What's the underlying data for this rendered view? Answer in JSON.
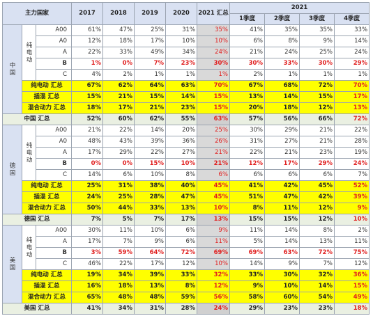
{
  "header": {
    "country_col": "主力国家",
    "years": [
      "2017",
      "2018",
      "2019",
      "2020"
    ],
    "y2021_total": "2021 汇总",
    "y2021_group": "2021",
    "quarters": [
      "1季度",
      "2季度",
      "3季度",
      "4季度"
    ]
  },
  "countries": [
    {
      "name": "中国",
      "pure_label": "纯电动",
      "segments": [
        {
          "label": "A00",
          "values": [
            "61%",
            "47%",
            "25%",
            "31%",
            "35%",
            "41%",
            "35%",
            "35%",
            "33%"
          ]
        },
        {
          "label": "A0",
          "values": [
            "12%",
            "18%",
            "17%",
            "10%",
            "10%",
            "6%",
            "8%",
            "9%",
            "14%"
          ]
        },
        {
          "label": "A",
          "values": [
            "22%",
            "33%",
            "49%",
            "34%",
            "24%",
            "21%",
            "24%",
            "25%",
            "24%"
          ]
        },
        {
          "label": "B",
          "values": [
            "1%",
            "0%",
            "7%",
            "23%",
            "30%",
            "30%",
            "33%",
            "30%",
            "29%"
          ]
        },
        {
          "label": "C",
          "values": [
            "4%",
            "2%",
            "1%",
            "1%",
            "1%",
            "2%",
            "1%",
            "1%",
            "1%"
          ]
        }
      ],
      "subtotals": [
        {
          "label": "纯电动 汇总",
          "values": [
            "67%",
            "62%",
            "64%",
            "63%",
            "70%",
            "67%",
            "68%",
            "72%",
            "70%"
          ]
        },
        {
          "label": "插混 汇总",
          "values": [
            "15%",
            "21%",
            "15%",
            "14%",
            "15%",
            "13%",
            "14%",
            "15%",
            "17%"
          ]
        },
        {
          "label": "混合动力 汇总",
          "values": [
            "18%",
            "17%",
            "21%",
            "23%",
            "15%",
            "20%",
            "18%",
            "12%",
            "13%"
          ]
        }
      ],
      "total": {
        "label": "中国 汇总",
        "values": [
          "52%",
          "60%",
          "62%",
          "55%",
          "63%",
          "57%",
          "56%",
          "66%",
          "72%"
        ]
      }
    },
    {
      "name": "德国",
      "pure_label": "纯电动",
      "segments": [
        {
          "label": "A00",
          "values": [
            "21%",
            "22%",
            "14%",
            "20%",
            "25%",
            "30%",
            "29%",
            "21%",
            "22%"
          ]
        },
        {
          "label": "A0",
          "values": [
            "48%",
            "43%",
            "39%",
            "36%",
            "26%",
            "31%",
            "27%",
            "21%",
            "28%"
          ]
        },
        {
          "label": "A",
          "values": [
            "17%",
            "29%",
            "22%",
            "27%",
            "21%",
            "22%",
            "21%",
            "23%",
            "19%"
          ]
        },
        {
          "label": "B",
          "values": [
            "0%",
            "0%",
            "15%",
            "10%",
            "21%",
            "12%",
            "17%",
            "29%",
            "24%"
          ]
        },
        {
          "label": "C",
          "values": [
            "14%",
            "6%",
            "10%",
            "8%",
            "6%",
            "6%",
            "6%",
            "6%",
            "7%"
          ]
        }
      ],
      "subtotals": [
        {
          "label": "纯电动 汇总",
          "values": [
            "25%",
            "31%",
            "38%",
            "40%",
            "45%",
            "41%",
            "42%",
            "45%",
            "52%"
          ]
        },
        {
          "label": "插混 汇总",
          "values": [
            "24%",
            "25%",
            "28%",
            "47%",
            "45%",
            "51%",
            "47%",
            "42%",
            "39%"
          ]
        },
        {
          "label": "混合动力 汇总",
          "values": [
            "50%",
            "44%",
            "33%",
            "13%",
            "10%",
            "8%",
            "11%",
            "12%",
            "9%"
          ]
        }
      ],
      "total": {
        "label": "德国 汇总",
        "values": [
          "7%",
          "5%",
          "7%",
          "17%",
          "13%",
          "15%",
          "15%",
          "12%",
          "10%"
        ]
      }
    },
    {
      "name": "美国",
      "pure_label": "纯电动",
      "segments": [
        {
          "label": "A00",
          "values": [
            "30%",
            "11%",
            "10%",
            "6%",
            "9%",
            "11%",
            "14%",
            "8%",
            "2%"
          ]
        },
        {
          "label": "A",
          "values": [
            "17%",
            "7%",
            "9%",
            "6%",
            "11%",
            "5%",
            "14%",
            "13%",
            "11%"
          ]
        },
        {
          "label": "B",
          "values": [
            "3%",
            "59%",
            "64%",
            "72%",
            "69%",
            "69%",
            "63%",
            "72%",
            "75%"
          ]
        },
        {
          "label": "C",
          "values": [
            "46%",
            "22%",
            "17%",
            "12%",
            "10%",
            "14%",
            "9%",
            "7%",
            "12%"
          ]
        }
      ],
      "subtotals": [
        {
          "label": "纯电动 汇总",
          "values": [
            "19%",
            "34%",
            "39%",
            "33%",
            "32%",
            "33%",
            "30%",
            "32%",
            "36%"
          ]
        },
        {
          "label": "插混 汇总",
          "values": [
            "16%",
            "18%",
            "13%",
            "8%",
            "12%",
            "9%",
            "10%",
            "14%",
            "15%"
          ]
        },
        {
          "label": "混合动力 汇总",
          "values": [
            "65%",
            "48%",
            "48%",
            "59%",
            "56%",
            "58%",
            "60%",
            "54%",
            "49%"
          ]
        }
      ],
      "total": {
        "label": "美国 汇总",
        "values": [
          "41%",
          "34%",
          "31%",
          "28%",
          "24%",
          "29%",
          "23%",
          "23%",
          "18%"
        ]
      }
    }
  ],
  "colors": {
    "header_bg": "#d9e1f2",
    "subtotal_bg": "#ffff00",
    "total_bg": "#eaf0e2",
    "highlight_2021": "#d9d9d9",
    "red_text": "#e02020"
  }
}
